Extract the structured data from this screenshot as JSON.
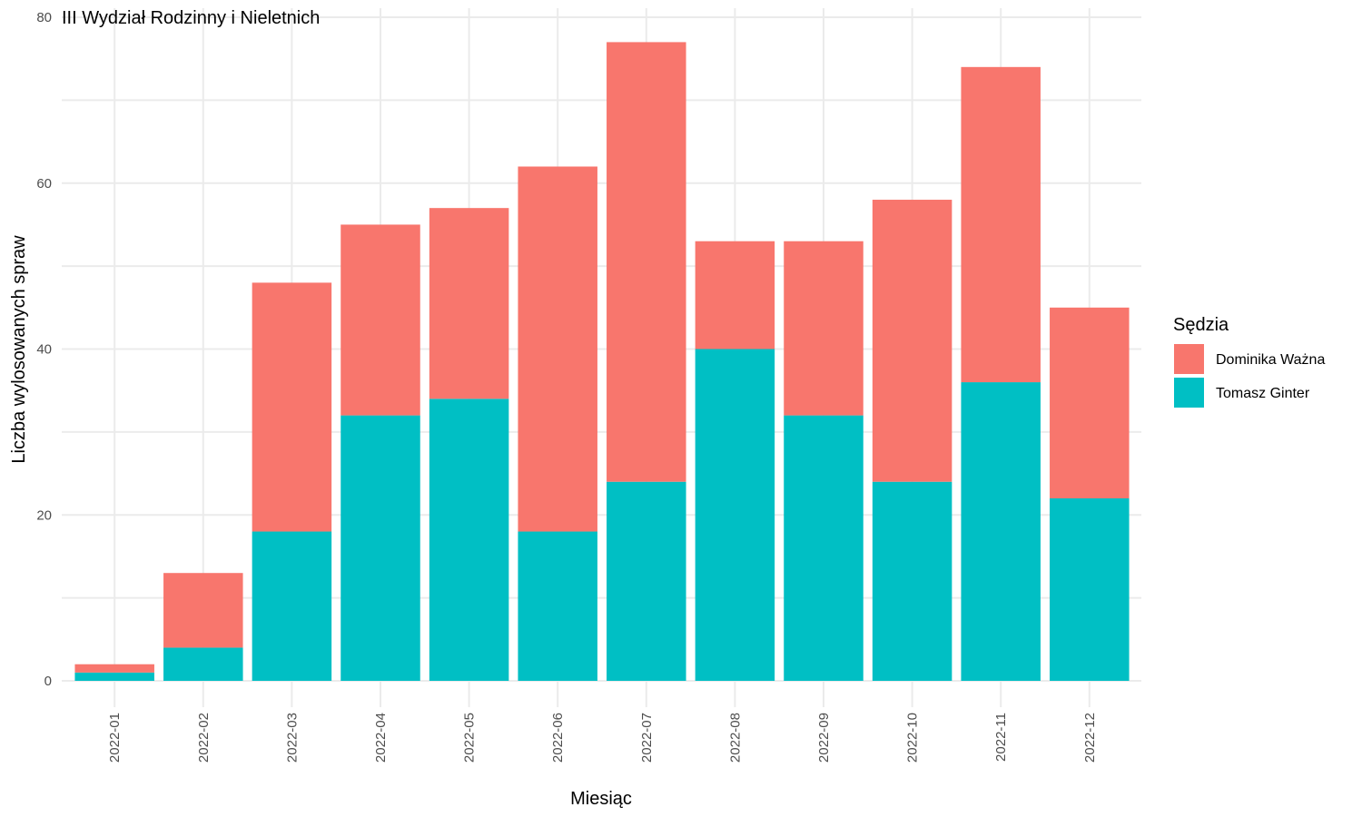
{
  "chart_data": {
    "type": "bar",
    "stacked": true,
    "title": "III Wydział Rodzinny i Nieletnich",
    "xlabel": "Miesiąc",
    "ylabel": "Liczba wylosowanych spraw",
    "ylim": [
      0,
      80
    ],
    "yticks": [
      0,
      20,
      40,
      60,
      80
    ],
    "grid": true,
    "legend": {
      "title": "Sędzia",
      "position": "right"
    },
    "categories": [
      "2022-01",
      "2022-02",
      "2022-03",
      "2022-04",
      "2022-05",
      "2022-06",
      "2022-07",
      "2022-08",
      "2022-09",
      "2022-10",
      "2022-11",
      "2022-12"
    ],
    "series": [
      {
        "name": "Tomasz Ginter",
        "color": "#00BFC4",
        "values": [
          1,
          4,
          18,
          32,
          34,
          18,
          24,
          40,
          32,
          24,
          36,
          22
        ]
      },
      {
        "name": "Dominika Ważna",
        "color": "#F8766D",
        "values": [
          1,
          9,
          30,
          23,
          23,
          44,
          53,
          13,
          21,
          34,
          38,
          23
        ]
      }
    ],
    "legend_order": [
      "Dominika Ważna",
      "Tomasz Ginter"
    ]
  }
}
